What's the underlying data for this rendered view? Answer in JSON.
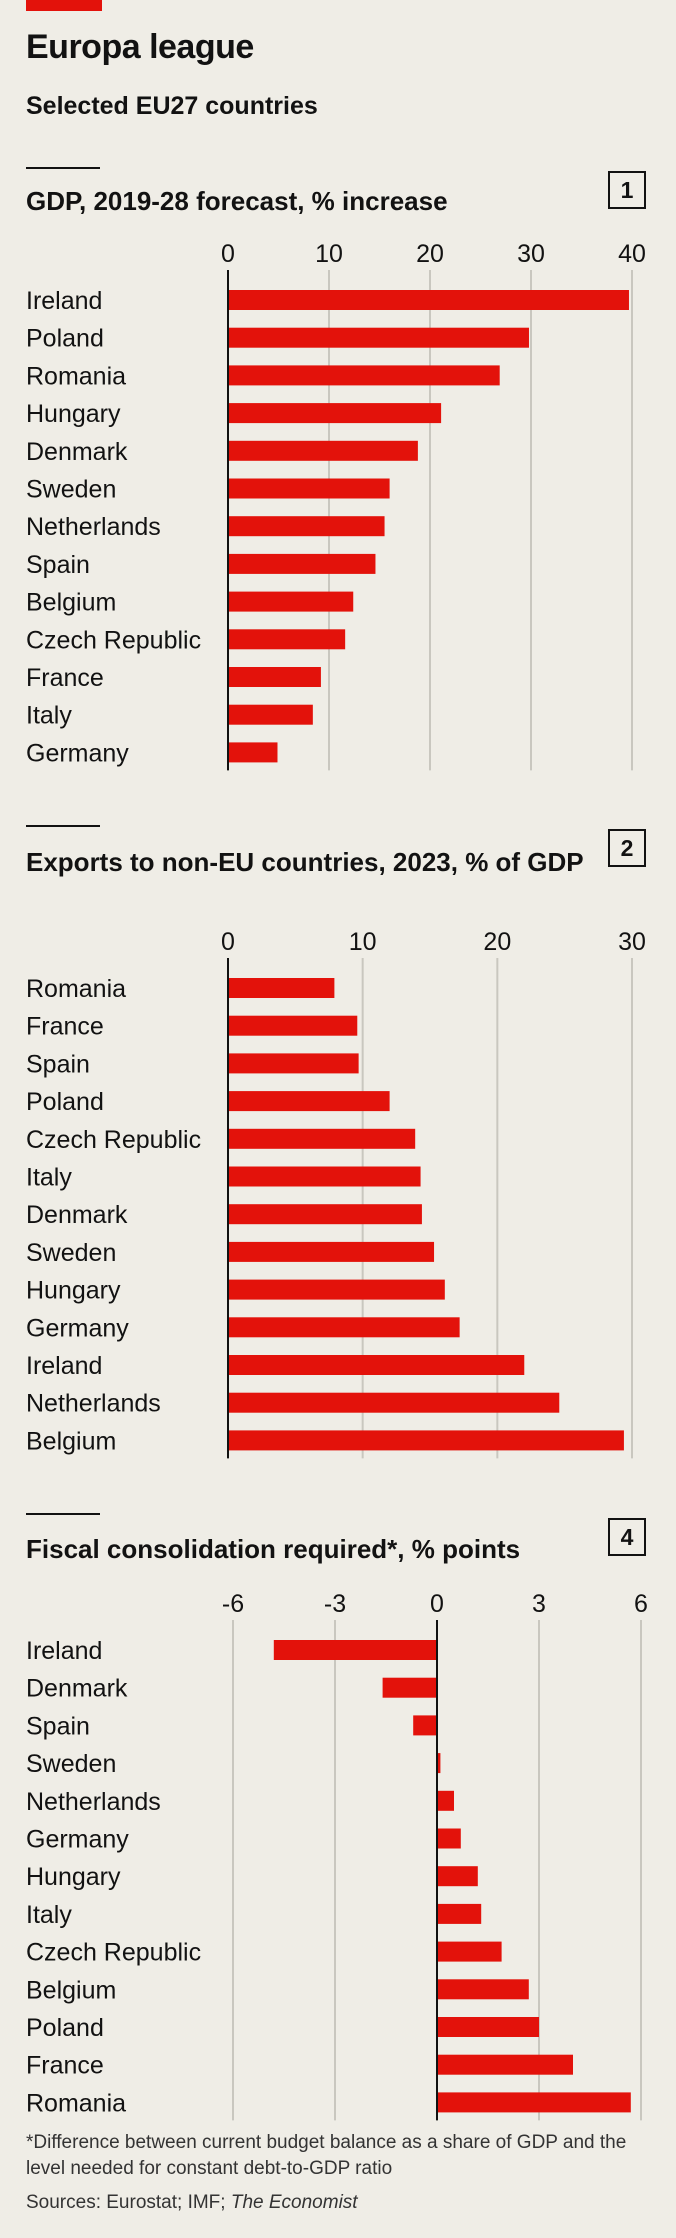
{
  "header": {
    "title": "Europa league",
    "subtitle": "Selected EU27 countries"
  },
  "chart_data": [
    {
      "type": "bar",
      "orientation": "horizontal",
      "number": "1",
      "title": "GDP, 2019-28 forecast, % increase",
      "categories": [
        "Ireland",
        "Poland",
        "Romania",
        "Hungary",
        "Denmark",
        "Sweden",
        "Netherlands",
        "Spain",
        "Belgium",
        "Czech Republic",
        "France",
        "Italy",
        "Germany"
      ],
      "values": [
        39.7,
        29.8,
        26.9,
        21.1,
        18.8,
        16.0,
        15.5,
        14.6,
        12.4,
        11.6,
        9.2,
        8.4,
        4.9
      ],
      "xlim": [
        0,
        40
      ],
      "ticks": [
        "0",
        "10",
        "20",
        "30",
        "40"
      ],
      "tick_values": [
        0,
        10,
        20,
        30,
        40
      ],
      "bar_color": "#e3120b",
      "grid": true
    },
    {
      "type": "bar",
      "orientation": "horizontal",
      "number": "2",
      "title": "Exports to non-EU countries, 2023, % of GDP",
      "categories": [
        "Romania",
        "France",
        "Spain",
        "Poland",
        "Czech Republic",
        "Italy",
        "Denmark",
        "Sweden",
        "Hungary",
        "Germany",
        "Ireland",
        "Netherlands",
        "Belgium"
      ],
      "values": [
        7.9,
        9.6,
        9.7,
        12.0,
        13.9,
        14.3,
        14.4,
        15.3,
        16.1,
        17.2,
        22.0,
        24.6,
        29.4
      ],
      "xlim": [
        0,
        30
      ],
      "ticks": [
        "0",
        "10",
        "20",
        "30"
      ],
      "tick_values": [
        0,
        10,
        20,
        30
      ],
      "bar_color": "#e3120b",
      "grid": true
    },
    {
      "type": "bar",
      "orientation": "horizontal",
      "number": "4",
      "title": "Fiscal consolidation required*, % points",
      "categories": [
        "Ireland",
        "Denmark",
        "Spain",
        "Sweden",
        "Netherlands",
        "Germany",
        "Hungary",
        "Italy",
        "Czech Republic",
        "Belgium",
        "Poland",
        "France",
        "Romania"
      ],
      "values": [
        -4.8,
        -1.6,
        -0.7,
        0.1,
        0.5,
        0.7,
        1.2,
        1.3,
        1.9,
        2.7,
        3.0,
        4.0,
        5.7
      ],
      "xlim": [
        -6,
        6
      ],
      "ticks": [
        "-6",
        "-3",
        "0",
        "3",
        "6"
      ],
      "tick_values": [
        -6,
        -3,
        0,
        3,
        6
      ],
      "bar_color": "#e3120b",
      "grid": true
    }
  ],
  "footer": {
    "footnote": "*Difference between current budget balance as a share of GDP and the level needed for constant debt-to-GDP ratio",
    "source_prefix": "Sources: Eurostat; IMF; ",
    "source_italic": "The Economist"
  }
}
